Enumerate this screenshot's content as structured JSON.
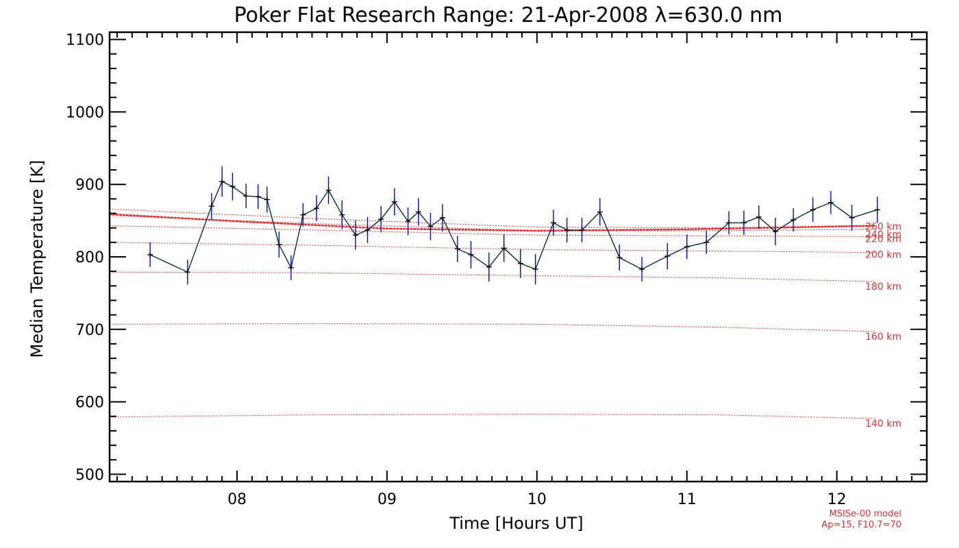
{
  "chart_data": {
    "type": "line",
    "title": "Poker Flat Research Range: 21-Apr-2008 λ=630.0 nm",
    "xlabel": "Time [Hours UT]",
    "ylabel": "Median Temperature [K]",
    "xlim": [
      7.15,
      12.6
    ],
    "ylim": [
      490,
      1110
    ],
    "x_ticks": [
      8,
      9,
      10,
      11,
      12
    ],
    "x_tick_labels": [
      "08",
      "09",
      "10",
      "11",
      "12"
    ],
    "y_ticks": [
      500,
      600,
      700,
      800,
      900,
      1000,
      1100
    ],
    "y_tick_labels": [
      "500",
      "600",
      "700",
      "800",
      "900",
      "1000",
      "1100"
    ],
    "grid": false,
    "series": [
      {
        "color": "#003333",
        "marker": "+",
        "error_color": "#0000ff",
        "x": [
          7.42,
          7.67,
          7.83,
          7.9,
          7.97,
          8.06,
          8.14,
          8.2,
          8.28,
          8.36,
          8.44,
          8.53,
          8.61,
          8.7,
          8.79,
          8.87,
          8.96,
          9.05,
          9.14,
          9.21,
          9.29,
          9.37,
          9.47,
          9.56,
          9.68,
          9.78,
          9.89,
          9.99,
          10.11,
          10.2,
          10.3,
          10.42,
          10.55,
          10.7,
          10.87,
          11.0,
          11.13,
          11.28,
          11.38,
          11.48,
          11.59,
          11.71,
          11.84,
          11.96,
          12.1,
          12.27
        ],
        "y": [
          803,
          779,
          870,
          904,
          897,
          884,
          883,
          879,
          817,
          785,
          858,
          867,
          892,
          858,
          830,
          837,
          852,
          876,
          849,
          862,
          842,
          854,
          811,
          803,
          786,
          812,
          791,
          783,
          847,
          837,
          837,
          862,
          799,
          783,
          801,
          814,
          820,
          847,
          847,
          855,
          835,
          851,
          865,
          875,
          854,
          865
        ],
        "error": [
          17,
          17,
          18,
          21,
          19,
          17,
          17,
          18,
          18,
          17,
          16,
          18,
          19,
          20,
          20,
          18,
          18,
          19,
          19,
          19,
          19,
          19,
          18,
          19,
          20,
          19,
          20,
          21,
          18,
          17,
          17,
          19,
          18,
          17,
          18,
          17,
          16,
          16,
          17,
          16,
          19,
          16,
          17,
          16,
          18,
          18
        ]
      }
    ],
    "model_lines": [
      {
        "label": "140 km",
        "x": [
          7.15,
          8.5,
          10.0,
          11.2,
          12.25
        ],
        "y": [
          579,
          582,
          583,
          582,
          577
        ]
      },
      {
        "label": "160 km",
        "x": [
          7.15,
          8.5,
          10.0,
          11.2,
          12.25
        ],
        "y": [
          707,
          708,
          707,
          703,
          697
        ]
      },
      {
        "label": "180 km",
        "x": [
          7.15,
          8.5,
          10.0,
          11.2,
          12.25
        ],
        "y": [
          779,
          778,
          774,
          771,
          766
        ]
      },
      {
        "label": "200 km",
        "x": [
          7.15,
          8.5,
          10.0,
          11.2,
          12.25
        ],
        "y": [
          820,
          816,
          810,
          808,
          806
        ]
      },
      {
        "label": "220 km",
        "x": [
          7.15,
          8.5,
          10.0,
          11.2,
          12.25
        ],
        "y": [
          843,
          837,
          830,
          829,
          828
        ]
      },
      {
        "label": "240 km",
        "x": [
          7.15,
          8.5,
          10.0,
          11.2,
          12.25
        ],
        "y": [
          857,
          846,
          836,
          836,
          838
        ]
      },
      {
        "label": "260 km",
        "x": [
          7.15,
          8.5,
          10.0,
          11.2,
          12.25
        ],
        "y": [
          866,
          853,
          841,
          840,
          843
        ]
      },
      {
        "label": "",
        "x": [
          7.15,
          8.0,
          9.0,
          10.0,
          11.0,
          12.25
        ],
        "y": [
          859,
          849,
          839,
          836,
          838,
          843
        ],
        "bold": true
      }
    ],
    "model_note": [
      "MSISe-00 model",
      "Ap=15, F10.7=70"
    ],
    "colors": {
      "data_line": "#003333",
      "error_bars": "#0000ff",
      "model": "#e03030",
      "axes": "#000000"
    }
  }
}
